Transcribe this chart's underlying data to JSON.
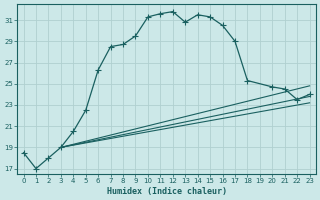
{
  "xlabel": "Humidex (Indice chaleur)",
  "bg_color": "#cce8e8",
  "line_color": "#1a6060",
  "grid_color": "#b0d0d0",
  "ylim": [
    16.5,
    32.5
  ],
  "xlim": [
    -0.5,
    23.5
  ],
  "yticks": [
    17,
    19,
    21,
    23,
    25,
    27,
    29,
    31
  ],
  "xticks": [
    0,
    1,
    2,
    3,
    4,
    5,
    6,
    7,
    8,
    9,
    10,
    11,
    12,
    13,
    14,
    15,
    16,
    17,
    18,
    19,
    20,
    21,
    22,
    23
  ],
  "curve1_x": [
    0,
    1,
    2,
    3,
    4,
    5,
    6,
    7,
    8,
    9,
    10,
    11,
    12,
    13,
    14,
    15,
    16,
    17,
    18,
    20,
    21,
    22,
    23
  ],
  "curve1_y": [
    18.5,
    17.0,
    18.0,
    19.0,
    20.5,
    22.5,
    26.3,
    28.5,
    28.7,
    29.5,
    31.3,
    31.6,
    31.8,
    30.8,
    31.5,
    31.3,
    30.5,
    29.0,
    25.3,
    24.7,
    24.5,
    23.5,
    24.0
  ],
  "curve2_x": [
    3,
    23
  ],
  "curve2_y": [
    19.0,
    24.8
  ],
  "curve3_x": [
    3,
    23
  ],
  "curve3_y": [
    19.0,
    23.8
  ],
  "curve4_x": [
    3,
    23
  ],
  "curve4_y": [
    19.0,
    23.2
  ],
  "markersize": 2.5
}
